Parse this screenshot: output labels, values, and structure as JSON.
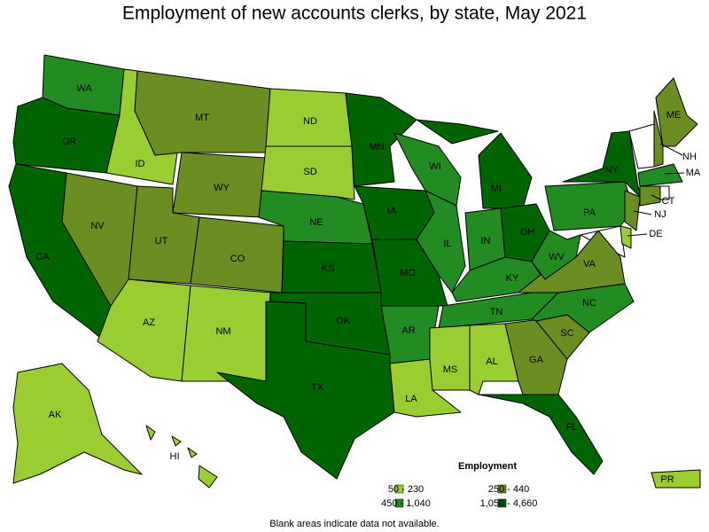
{
  "title": "Employment of new accounts clerks, by state, May 2021",
  "legend": {
    "title": "Employment",
    "items": [
      {
        "label": "50 - 230",
        "color": "#9acd32"
      },
      {
        "label": "450 - 1,040",
        "color": "#228b22"
      },
      {
        "label": "250 - 440",
        "color": "#6b8e23"
      },
      {
        "label": "1,050 - 4,660",
        "color": "#006400"
      }
    ]
  },
  "states": [
    {
      "label": "WA",
      "class": 1
    },
    {
      "label": "OR",
      "class": 3
    },
    {
      "label": "CA",
      "class": 3
    },
    {
      "label": "NV",
      "class": 2
    },
    {
      "label": "ID",
      "class": 0
    },
    {
      "label": "MT",
      "class": 2
    },
    {
      "label": "WY",
      "class": 2
    },
    {
      "label": "UT",
      "class": 2
    },
    {
      "label": "CO",
      "class": 2
    },
    {
      "label": "AZ",
      "class": 0
    },
    {
      "label": "NM",
      "class": 0
    },
    {
      "label": "ND",
      "class": 0
    },
    {
      "label": "SD",
      "class": 0
    },
    {
      "label": "NE",
      "class": 1
    },
    {
      "label": "KS",
      "class": 3
    },
    {
      "label": "OK",
      "class": 3
    },
    {
      "label": "TX",
      "class": 3
    },
    {
      "label": "MN",
      "class": 3
    },
    {
      "label": "IA",
      "class": 3
    },
    {
      "label": "MO",
      "class": 3
    },
    {
      "label": "AR",
      "class": 1
    },
    {
      "label": "LA",
      "class": 0
    },
    {
      "label": "WI",
      "class": 1
    },
    {
      "label": "IL",
      "class": 1
    },
    {
      "label": "MI",
      "class": 3
    },
    {
      "label": "IN",
      "class": 1
    },
    {
      "label": "OH",
      "class": 3
    },
    {
      "label": "KY",
      "class": 1
    },
    {
      "label": "TN",
      "class": 1
    },
    {
      "label": "MS",
      "class": 0
    },
    {
      "label": "AL",
      "class": 0
    },
    {
      "label": "GA",
      "class": 2
    },
    {
      "label": "FL",
      "class": 3
    },
    {
      "label": "SC",
      "class": 2
    },
    {
      "label": "NC",
      "class": 1
    },
    {
      "label": "VA",
      "class": 2
    },
    {
      "label": "WV",
      "class": 1
    },
    {
      "label": "PA",
      "class": 1
    },
    {
      "label": "NY",
      "class": 3
    },
    {
      "label": "ME",
      "class": 2
    },
    {
      "label": "NH",
      "class": 2
    },
    {
      "label": "MA",
      "class": 1
    },
    {
      "label": "CT",
      "class": 2
    },
    {
      "label": "NJ",
      "class": 2
    },
    {
      "label": "DE",
      "class": 0
    },
    {
      "label": "AK",
      "class": 0
    },
    {
      "label": "HI",
      "class": 0
    },
    {
      "label": "PR",
      "class": 0
    }
  ],
  "note": "Blank areas indicate data not available."
}
